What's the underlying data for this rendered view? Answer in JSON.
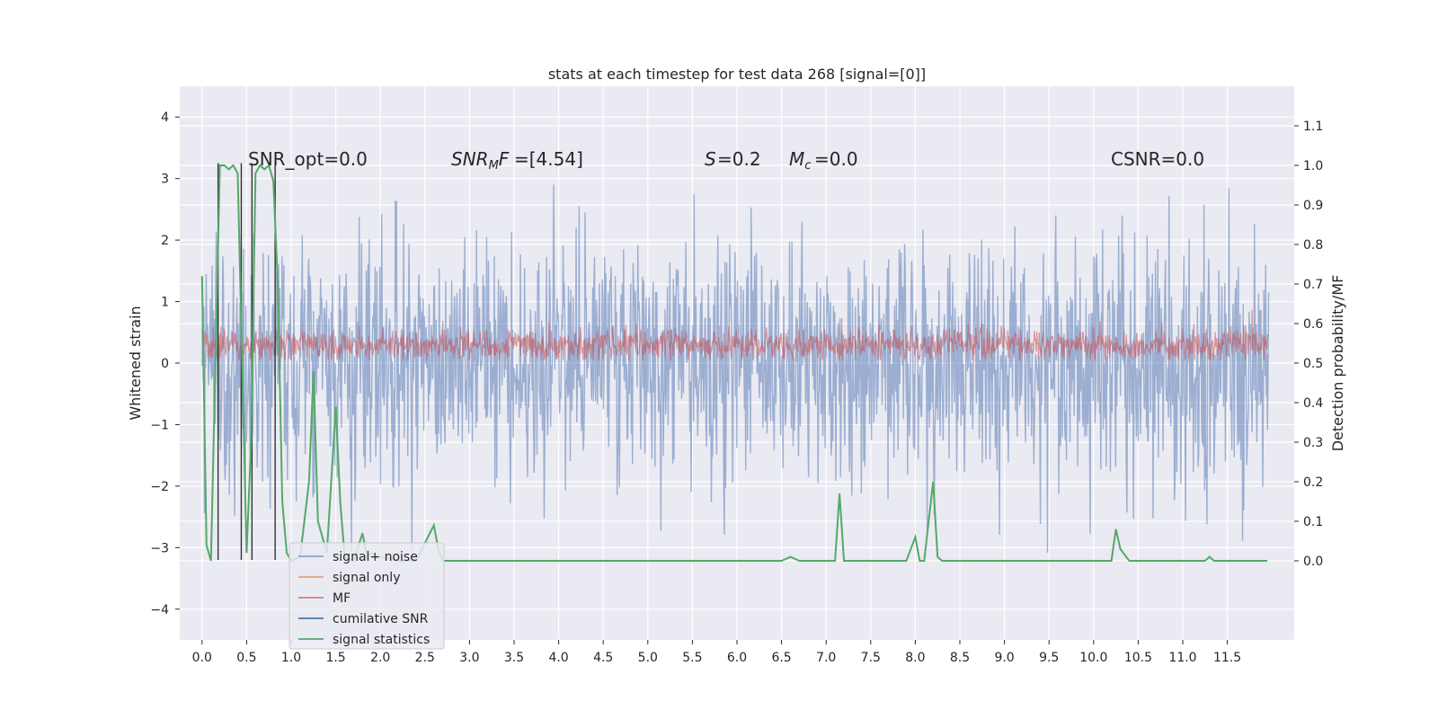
{
  "chart_data": {
    "type": "line",
    "title": "stats at each timestep for test data 268 [signal=[0]]",
    "ylabel": "Whitened strain",
    "y2label": "Detection probability/MF",
    "xlim": [
      -0.25,
      12.25
    ],
    "ylim": [
      -4.5,
      4.5
    ],
    "y2lim": [
      -0.2,
      1.2
    ],
    "x_ticks": [
      0.0,
      0.5,
      1.0,
      1.5,
      2.0,
      2.5,
      3.0,
      3.5,
      4.0,
      4.5,
      5.0,
      5.5,
      6.0,
      6.5,
      7.0,
      7.5,
      8.0,
      8.5,
      9.0,
      9.5,
      10.0,
      10.5,
      11.0,
      11.5
    ],
    "y_ticks": [
      -4,
      -3,
      -2,
      -1,
      0,
      1,
      2,
      3,
      4
    ],
    "y2_ticks": [
      0.0,
      0.1,
      0.2,
      0.3,
      0.4,
      0.5,
      0.6,
      0.7,
      0.8,
      0.9,
      1.0,
      1.1
    ],
    "grid": true,
    "legend_position": "lower-left",
    "annotations": {
      "snr_opt": "SNR_opt=0.0",
      "snr_mf": "=[4.54]",
      "s_value": "=0.2",
      "mc_value": "=0.0",
      "csnr": "CSNR=0.0"
    },
    "series": [
      {
        "name": "signal+ noise",
        "color": "#4c72b0",
        "axis": "left",
        "description_range": [
          -4.1,
          4.1
        ],
        "typical_range": [
          -2.5,
          2.5
        ]
      },
      {
        "name": "signal only",
        "color": "#dd8452",
        "axis": "left",
        "values_constant": 0.0
      },
      {
        "name": "MF",
        "color": "#c44e52",
        "axis": "left",
        "typical_range": [
          0.0,
          0.7
        ]
      },
      {
        "name": "cumilative SNR",
        "color": "#4c72b0",
        "axis": "right"
      },
      {
        "name": "signal statistics",
        "color": "#55a868",
        "axis": "right",
        "x": [
          0.0,
          0.05,
          0.1,
          0.15,
          0.2,
          0.25,
          0.3,
          0.35,
          0.4,
          0.45,
          0.5,
          0.55,
          0.6,
          0.65,
          0.7,
          0.75,
          0.8,
          0.85,
          0.9,
          0.95,
          1.0,
          1.1,
          1.2,
          1.25,
          1.3,
          1.4,
          1.5,
          1.55,
          1.6,
          1.7,
          1.8,
          1.85,
          1.9,
          2.0,
          2.2,
          2.4,
          2.6,
          2.65,
          2.7,
          3.0,
          4.0,
          5.0,
          6.0,
          6.5,
          6.6,
          6.7,
          7.0,
          7.1,
          7.15,
          7.2,
          7.5,
          7.9,
          8.0,
          8.05,
          8.1,
          8.2,
          8.25,
          8.3,
          9.0,
          10.0,
          10.2,
          10.25,
          10.3,
          10.4,
          11.0,
          11.25,
          11.3,
          11.35,
          11.5,
          11.95
        ],
        "values": [
          0.72,
          0.04,
          0.0,
          0.5,
          1.0,
          1.0,
          0.99,
          1.0,
          0.98,
          0.5,
          0.02,
          0.3,
          0.98,
          1.0,
          0.99,
          1.0,
          0.96,
          0.7,
          0.15,
          0.02,
          0.0,
          0.01,
          0.2,
          0.48,
          0.1,
          0.02,
          0.39,
          0.15,
          0.01,
          0.0,
          0.07,
          0.01,
          0.02,
          0.01,
          0.0,
          0.0,
          0.09,
          0.03,
          0.0,
          0.0,
          0.0,
          0.0,
          0.0,
          0.0,
          0.01,
          0.0,
          0.0,
          0.0,
          0.17,
          0.0,
          0.0,
          0.0,
          0.06,
          0.0,
          0.0,
          0.2,
          0.01,
          0.0,
          0.0,
          0.0,
          0.0,
          0.08,
          0.03,
          0.0,
          0.0,
          0.0,
          0.01,
          0.0,
          0.0,
          0.0
        ]
      }
    ],
    "black_lines_x": [
      0.18,
      0.44,
      0.56,
      0.82
    ]
  }
}
